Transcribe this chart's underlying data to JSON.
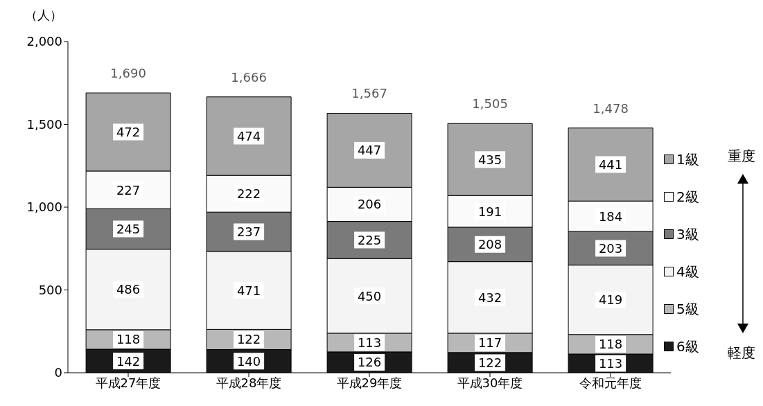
{
  "chart_data": {
    "type": "bar",
    "stacked": true,
    "ylabel": "（人）",
    "categories": [
      "平成27年度",
      "平成28年度",
      "平成29年度",
      "平成30年度",
      "令和元年度"
    ],
    "series": [
      {
        "name": "6級",
        "color": "#1a1a1a",
        "values": [
          142,
          140,
          126,
          122,
          113
        ]
      },
      {
        "name": "5級",
        "color": "#b8b8b8",
        "values": [
          118,
          122,
          113,
          117,
          118
        ]
      },
      {
        "name": "4級",
        "color": "#f4f4f4",
        "values": [
          486,
          471,
          450,
          432,
          419
        ]
      },
      {
        "name": "3級",
        "color": "#7a7a7a",
        "values": [
          245,
          237,
          225,
          208,
          203
        ]
      },
      {
        "name": "2級",
        "color": "#fafafa",
        "values": [
          227,
          222,
          206,
          191,
          184
        ]
      },
      {
        "name": "1級",
        "color": "#a6a6a6",
        "values": [
          472,
          474,
          447,
          435,
          441
        ]
      }
    ],
    "totals": [
      "1,690",
      "1,666",
      "1,567",
      "1,505",
      "1,478"
    ],
    "data_labels": true,
    "ylim": [
      0,
      2000
    ],
    "yticks": [
      0,
      {
        "value": 500,
        "label": "500"
      },
      {
        "value": 1000,
        "label": "1,000"
      },
      {
        "value": 1500,
        "label": "1,500"
      },
      {
        "value": 2000,
        "label": "2,000"
      }
    ],
    "grid": false,
    "legend": "right",
    "annotations": [
      "重度",
      "軽度"
    ]
  }
}
